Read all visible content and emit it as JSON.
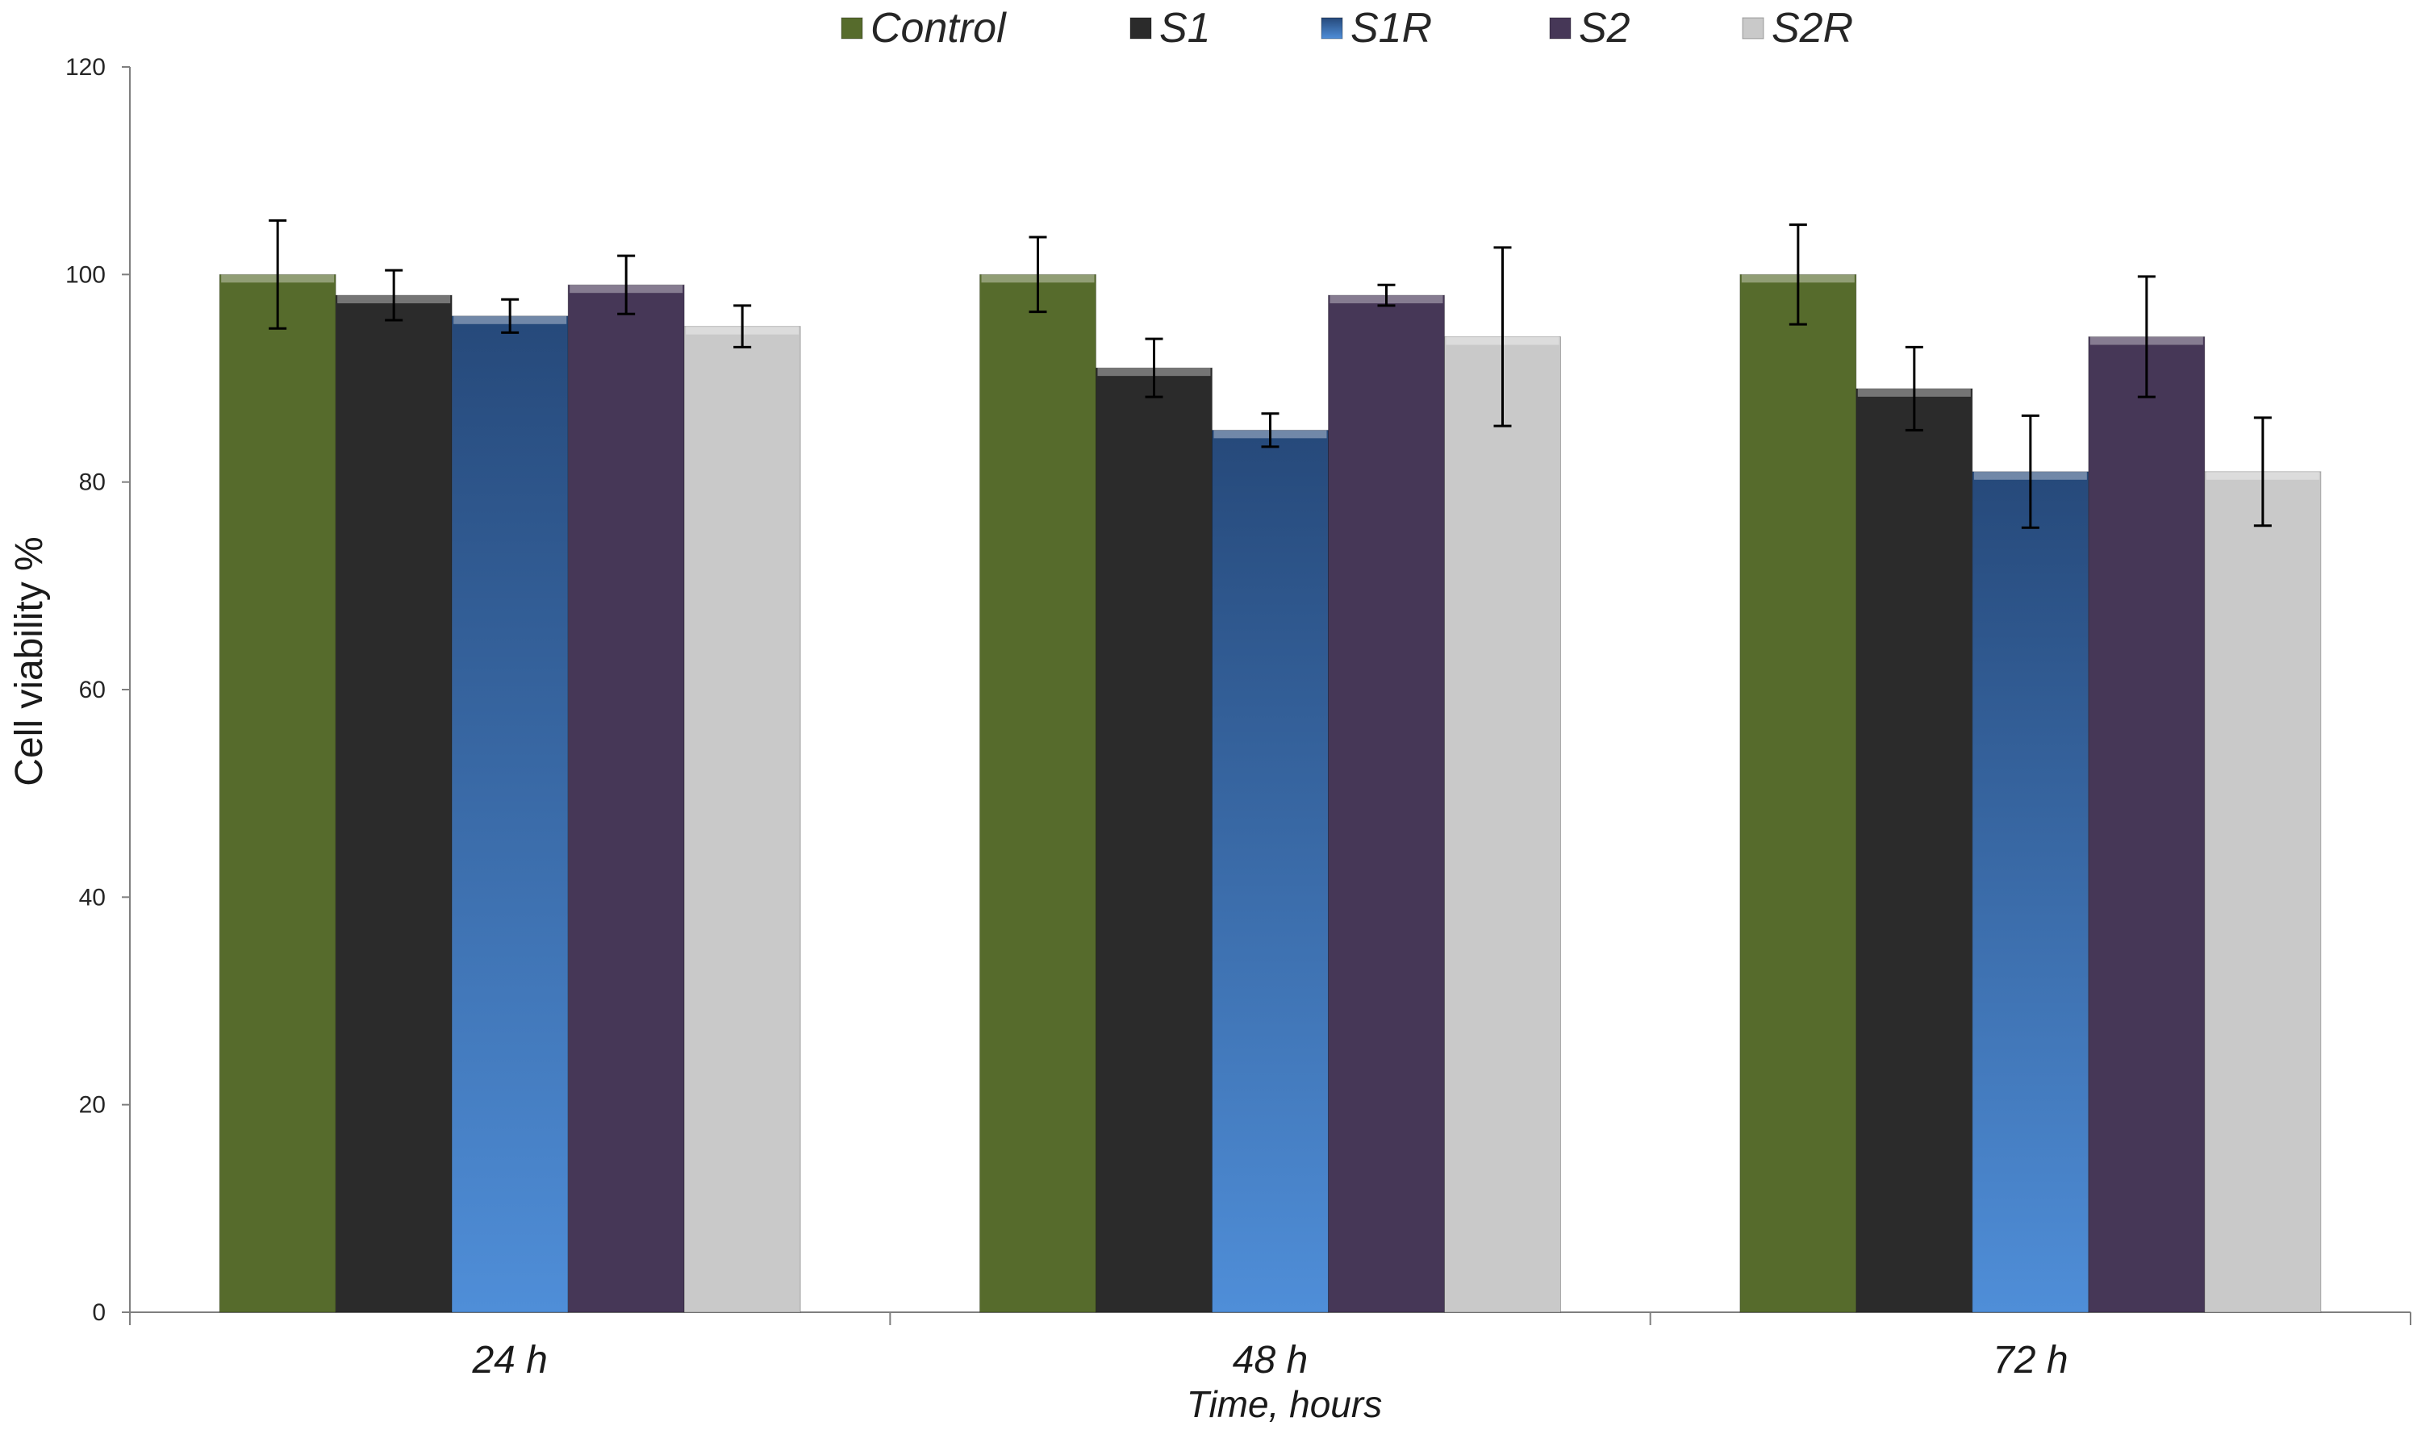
{
  "chart_data": {
    "type": "bar",
    "title": "",
    "xlabel": "Time, hours",
    "ylabel": "Cell viability %",
    "ylim": [
      0,
      120
    ],
    "yticks": [
      0,
      20,
      40,
      60,
      80,
      100,
      120
    ],
    "categories": [
      "24 h",
      "48 h",
      "72 h"
    ],
    "legend_position": "top",
    "series": [
      {
        "name": "Control",
        "color": "#566b2c",
        "values": [
          100,
          100,
          100
        ],
        "errors": [
          5.2,
          3.6,
          4.8
        ]
      },
      {
        "name": "S1",
        "color": "#2b2b2b",
        "values": [
          98,
          91,
          89
        ],
        "errors": [
          2.4,
          2.8,
          4.0
        ]
      },
      {
        "name": "S1R",
        "color": "#3a70b6",
        "values": [
          96,
          85,
          81
        ],
        "errors": [
          1.6,
          1.6,
          5.4
        ]
      },
      {
        "name": "S2",
        "color": "#463757",
        "values": [
          99,
          98,
          94
        ],
        "errors": [
          2.8,
          1.0,
          5.8
        ]
      },
      {
        "name": "S2R",
        "color": "#c9c9c9",
        "values": [
          95,
          94,
          81
        ],
        "errors": [
          2.0,
          8.6,
          5.2
        ]
      }
    ]
  }
}
